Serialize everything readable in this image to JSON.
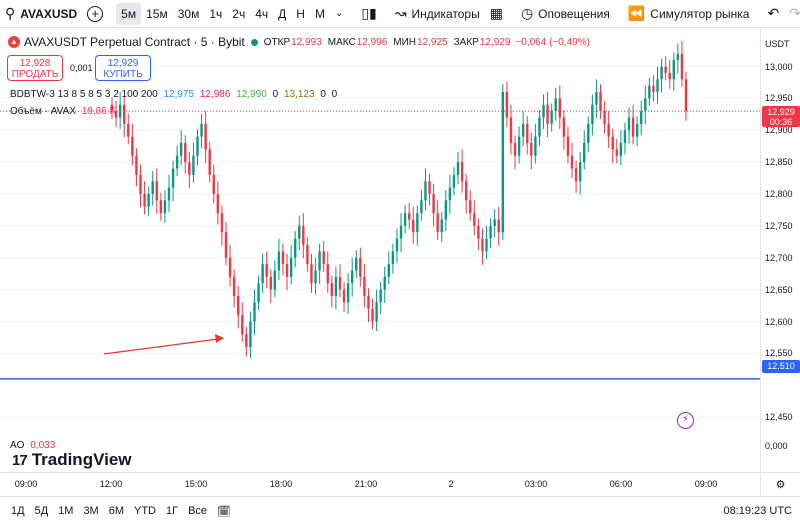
{
  "toolbar": {
    "symbol": "AVAXUSD",
    "intervals": [
      "5м",
      "15м",
      "30м",
      "1ч",
      "2ч",
      "4ч",
      "Д",
      "Н",
      "М"
    ],
    "active_interval": "5м",
    "indicators_label": "Индикаторы",
    "alerts_label": "Оповещения",
    "replay_label": "Симулятор рынка"
  },
  "legend": {
    "title": "AVAXUSDT Perpetual Contract · 5 · Bybit",
    "open_label": "ОТКР",
    "open": "12,993",
    "high_label": "МАКС",
    "high": "12,996",
    "low_label": "МИН",
    "low": "12,925",
    "close_label": "ЗАКР",
    "close": "12,929",
    "change": "−0,064 (−0,49%)",
    "sell_price": "12,928",
    "sell_label": "ПРОДАТЬ",
    "buy_price": "12,929",
    "buy_label": "КУПИТЬ",
    "spread": "0,001",
    "indicator_name": "BDBTW-3 13 8 5 8 5 3 2 100 200",
    "indicator_values": [
      "12,975",
      "12,986",
      "12,990",
      "0",
      "13,123",
      "0",
      "0"
    ],
    "volume_label": "Объём · AVAX",
    "volume_value": "19,86 K",
    "ao_label": "AO",
    "ao_value": "0,033",
    "brand": "TradingView"
  },
  "price_scale": {
    "currency": "USDT",
    "current_price": "12,929",
    "countdown": "00:36",
    "line_price": "12,510",
    "ao_zero": "0,000"
  },
  "bottom": {
    "ranges": [
      "1Д",
      "5Д",
      "1М",
      "3М",
      "6М",
      "YTD",
      "1Г",
      "Все"
    ],
    "clock": "08:19:23 UTC"
  },
  "chart_data": {
    "type": "candlestick",
    "y_ticks": [
      "13,000",
      "12,950",
      "12,900",
      "12,850",
      "12,800",
      "12,750",
      "12,700",
      "12,650",
      "12,600",
      "12,550",
      "12,450"
    ],
    "x_ticks": [
      "09:00",
      "12:00",
      "15:00",
      "18:00",
      "21:00",
      "2",
      "03:00",
      "06:00",
      "09:00"
    ],
    "ylim": [
      12.4,
      13.04
    ],
    "horizontal_line": 12.51,
    "colors": {
      "up": "#089981",
      "down": "#f23645",
      "line": "#2962ff",
      "arrow": "#e53935"
    },
    "closes": [
      12.93,
      12.92,
      12.94,
      12.91,
      12.89,
      12.86,
      12.83,
      12.8,
      12.78,
      12.8,
      12.82,
      12.79,
      12.77,
      12.79,
      12.81,
      12.84,
      12.86,
      12.88,
      12.85,
      12.83,
      12.86,
      12.89,
      12.91,
      12.87,
      12.83,
      12.8,
      12.77,
      12.74,
      12.7,
      12.67,
      12.64,
      12.61,
      12.58,
      12.56,
      12.6,
      12.63,
      12.66,
      12.69,
      12.67,
      12.65,
      12.68,
      12.71,
      12.69,
      12.67,
      12.7,
      12.73,
      12.75,
      12.72,
      12.69,
      12.66,
      12.68,
      12.71,
      12.69,
      12.66,
      12.64,
      12.67,
      12.65,
      12.63,
      12.66,
      12.68,
      12.7,
      12.67,
      12.64,
      12.62,
      12.6,
      12.63,
      12.65,
      12.67,
      12.69,
      12.71,
      12.73,
      12.75,
      12.77,
      12.76,
      12.74,
      12.77,
      12.79,
      12.82,
      12.8,
      12.77,
      12.74,
      12.76,
      12.79,
      12.81,
      12.83,
      12.85,
      12.82,
      12.79,
      12.77,
      12.75,
      12.73,
      12.71,
      12.73,
      12.75,
      12.76,
      12.74,
      12.96,
      12.92,
      12.88,
      12.86,
      12.89,
      12.91,
      12.88,
      12.86,
      12.89,
      12.92,
      12.94,
      12.91,
      12.93,
      12.95,
      12.92,
      12.89,
      12.86,
      12.84,
      12.82,
      12.85,
      12.88,
      12.91,
      12.94,
      12.96,
      12.93,
      12.91,
      12.89,
      12.87,
      12.86,
      12.88,
      12.9,
      12.92,
      12.89,
      12.91,
      12.93,
      12.95,
      12.97,
      12.96,
      12.98,
      13.0,
      12.99,
      12.98,
      13.01,
      13.02,
      12.98,
      12.93
    ]
  }
}
